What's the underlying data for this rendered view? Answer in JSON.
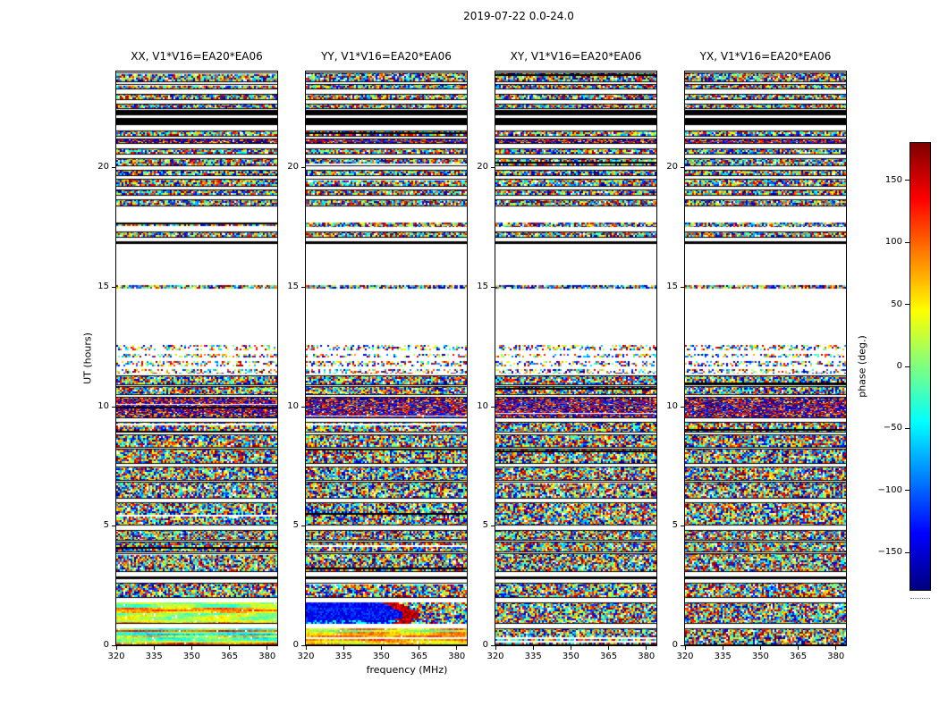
{
  "chart_data": {
    "type": "heatmap",
    "title": "2019-07-22 0.0-24.0",
    "xlabel": "frequency (MHz)",
    "ylabel": "UT (hours)",
    "xlim": [
      320,
      384
    ],
    "ylim": [
      0,
      24
    ],
    "xticks": [
      320,
      335,
      350,
      365,
      380
    ],
    "yticks": [
      0,
      5,
      10,
      15,
      20
    ],
    "colormap": "jet",
    "grid": false,
    "colorbar": {
      "label": "phase (deg.)",
      "vmin": -180,
      "vmax": 180,
      "tick_values": [
        150,
        100,
        50,
        0,
        -50,
        -100,
        -150
      ],
      "tick_labels": [
        "150",
        "100",
        "50",
        "0",
        "−50",
        "−100",
        "−150"
      ]
    },
    "panels": [
      {
        "key": "xx",
        "title": "XX, V1*V16=EA20*EA06"
      },
      {
        "key": "yy",
        "title": "YY, V1*V16=EA20*EA06"
      },
      {
        "key": "xy",
        "title": "XY, V1*V16=EA20*EA06"
      },
      {
        "key": "yx",
        "title": "YX, V1*V16=EA20*EA06"
      }
    ],
    "time_bands": [
      {
        "t0": 23.55,
        "t1": 23.95,
        "kind": "noise"
      },
      {
        "t0": 23.25,
        "t1": 23.49,
        "kind": "noise"
      },
      {
        "t0": 22.8,
        "t1": 23.08,
        "kind": "noise"
      },
      {
        "t0": 22.43,
        "t1": 22.64,
        "kind": "noise"
      },
      {
        "t0": 22.18,
        "t1": 22.38,
        "kind": "black"
      },
      {
        "t0": 21.74,
        "t1": 22.06,
        "kind": "black"
      },
      {
        "t0": 21.28,
        "t1": 21.55,
        "kind": "noise"
      },
      {
        "t0": 20.98,
        "t1": 21.18,
        "kind": "dense"
      },
      {
        "t0": 20.54,
        "t1": 20.8,
        "kind": "noise"
      },
      {
        "t0": 20.02,
        "t1": 20.38,
        "kind": "noise"
      },
      {
        "t0": 19.64,
        "t1": 19.87,
        "kind": "noise"
      },
      {
        "t0": 19.19,
        "t1": 19.5,
        "kind": "noise"
      },
      {
        "t0": 18.82,
        "t1": 19.05,
        "kind": "noise"
      },
      {
        "t0": 18.37,
        "t1": 18.64,
        "kind": "noise"
      },
      {
        "t0": 17.48,
        "t1": 17.7,
        "kind": "noise"
      },
      {
        "t0": 17.06,
        "t1": 17.32,
        "kind": "noise"
      },
      {
        "t0": 16.8,
        "t1": 16.91,
        "kind": "black"
      },
      {
        "t0": 14.9,
        "t1": 15.05,
        "kind": "noise"
      },
      {
        "t0": 12.35,
        "t1": 12.55,
        "kind": "sparse"
      },
      {
        "t0": 12.02,
        "t1": 12.2,
        "kind": "sparse"
      },
      {
        "t0": 11.68,
        "t1": 11.9,
        "kind": "sparse"
      },
      {
        "t0": 11.38,
        "t1": 11.56,
        "kind": "sparse"
      },
      {
        "t0": 10.88,
        "t1": 11.3,
        "kind": "noise"
      },
      {
        "t0": 10.48,
        "t1": 10.84,
        "kind": "noise"
      },
      {
        "t0": 9.48,
        "t1": 10.38,
        "kind": "dense"
      },
      {
        "t0": 8.88,
        "t1": 9.36,
        "kind": "noise"
      },
      {
        "t0": 8.28,
        "t1": 8.84,
        "kind": "noise"
      },
      {
        "t0": 7.58,
        "t1": 8.24,
        "kind": "noise"
      },
      {
        "t0": 6.88,
        "t1": 7.46,
        "kind": "noise"
      },
      {
        "t0": 6.13,
        "t1": 6.84,
        "kind": "noise"
      },
      {
        "t0": 5.0,
        "t1": 5.98,
        "kind": "noise"
      },
      {
        "t0": 4.38,
        "t1": 4.84,
        "kind": "noise"
      },
      {
        "t0": 3.88,
        "t1": 4.34,
        "kind": "noise"
      },
      {
        "t0": 3.05,
        "t1": 3.84,
        "kind": "noise"
      },
      {
        "t0": 2.78,
        "t1": 2.89,
        "kind": "black"
      },
      {
        "t0": 2.0,
        "t1": 2.62,
        "kind": "noise"
      },
      {
        "t0": 0.9,
        "t1": 1.78,
        "kind": "noise",
        "id": "lowband"
      },
      {
        "t0": 0.0,
        "t1": 0.72,
        "kind": "noise",
        "id": "bottom"
      }
    ],
    "panel_overrides": [
      {
        "lowband": "streaks_warm",
        "bottom": "streaks_bright"
      },
      {
        "lowband": "blue_blob",
        "bottom": "streaks_bright"
      },
      {},
      {}
    ]
  }
}
